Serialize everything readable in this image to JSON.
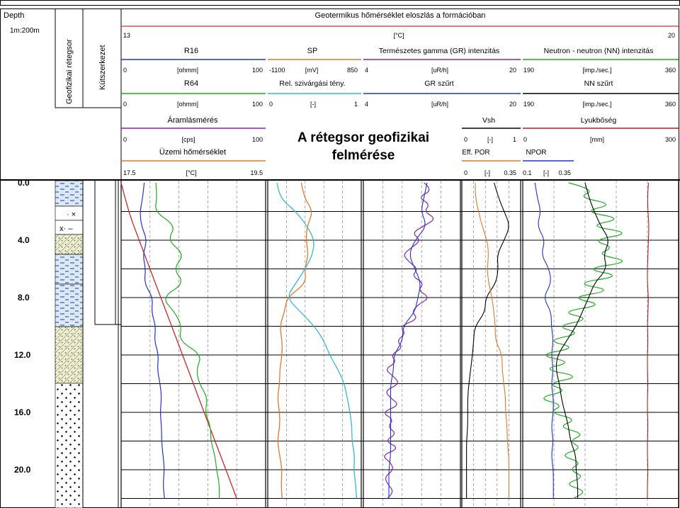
{
  "header": {
    "depth_label": "Depth",
    "scale_label": "1m:200m",
    "col1_label": "Geofizikai rétegsor",
    "col2_label": "Kútszerkezet",
    "main_title": "Geotermikus hőmérséklet eloszlás a formációban",
    "temp_scale": {
      "left": "13",
      "unit": "[°C]",
      "right": "20"
    }
  },
  "overlay_title": {
    "line1": "A rétegsor geofizikai",
    "line2": "felmérése"
  },
  "tracks": {
    "r16": {
      "name": "R16",
      "min": "0",
      "unit": "[ohmm]",
      "max": "100",
      "color": "#2233cc"
    },
    "sp": {
      "name": "SP",
      "min": "-1100",
      "unit": "[mV]",
      "max": "850",
      "color": "#e07a2a"
    },
    "gr": {
      "name": "Természetes gamma (GR) intenzitás",
      "min": "4",
      "unit": "[uR/h]",
      "max": "20",
      "color": "#8822aa"
    },
    "nn": {
      "name": "Neutron - neutron (NN) intenzitás",
      "min": "190",
      "unit": "[imp./sec.]",
      "max": "360",
      "color": "#22aa22"
    },
    "r64": {
      "name": "R64",
      "min": "0",
      "unit": "[ohmm]",
      "max": "100",
      "color": "#22aa22"
    },
    "relsz": {
      "name": "Rel. szivárgási tény.",
      "min": "0",
      "unit": "[-]",
      "max": "1",
      "color": "#33bbcc"
    },
    "grf": {
      "name": "GR szűrt",
      "min": "4",
      "unit": "[uR/h]",
      "max": "20",
      "color": "#2233cc"
    },
    "nnf": {
      "name": "NN szűrt",
      "min": "190",
      "unit": "[imp./sec.]",
      "max": "360",
      "color": "#000000"
    },
    "flow": {
      "name": "Áramlásmérés",
      "min": "0",
      "unit": "[cps]",
      "max": "100",
      "color": "#8822aa"
    },
    "vsh": {
      "name": "Vsh",
      "min": "0",
      "unit": "[-]",
      "max": "1",
      "color": "#000000"
    },
    "caliper": {
      "name": "Lyukbőség",
      "min": "0",
      "unit": "[mm]",
      "max": "300",
      "color": "#aa2222"
    },
    "optemp": {
      "name": "Üzemi hőmérséklet",
      "min": "17.5",
      "unit": "[°C]",
      "max": "19.5",
      "color": "#cc3333"
    },
    "effpor": {
      "name": "Eff. POR",
      "min": "0",
      "unit": "[-]",
      "max": "0.35",
      "color": "#e07a2a"
    },
    "npor": {
      "name": "NPOR",
      "min": "0.1",
      "unit": "[-]",
      "max": "0.35",
      "color": "#2233cc"
    }
  },
  "chart_data": {
    "type": "line",
    "depth_ticks": [
      "4.0",
      "8.0",
      "12.0",
      "16.0",
      "20.0"
    ],
    "partial_top_tick": "0.0",
    "series": [
      {
        "name": "Üzemi hőmérséklet",
        "y": [
          0,
          2,
          4,
          6,
          8,
          10,
          12,
          14,
          16,
          18,
          20,
          22
        ],
        "values": [
          17.5,
          17.6,
          17.75,
          17.9,
          18.05,
          18.2,
          18.35,
          18.5,
          18.65,
          18.8,
          18.95,
          19.1
        ]
      },
      {
        "name": "R16",
        "y": [
          0,
          1,
          2,
          3,
          4,
          5,
          6,
          7,
          8,
          9,
          10,
          11,
          12,
          13,
          14,
          15,
          16,
          17,
          18,
          19,
          20,
          21,
          22
        ],
        "values": [
          16,
          15,
          13,
          14,
          18,
          15,
          17,
          16,
          22,
          21,
          24,
          23,
          26,
          25,
          27,
          28,
          27,
          28,
          28,
          29,
          30,
          29,
          30
        ]
      },
      {
        "name": "R64",
        "y": [
          0,
          1,
          2,
          3,
          4,
          5,
          6,
          7,
          8,
          9,
          10,
          11,
          12,
          13,
          14,
          15,
          16,
          17,
          18,
          19,
          20,
          21,
          22
        ],
        "values": [
          24,
          25,
          23,
          38,
          32,
          44,
          36,
          44,
          28,
          37,
          42,
          40,
          56,
          52,
          54,
          60,
          58,
          62,
          62,
          65,
          66,
          68,
          68
        ]
      },
      {
        "name": "SP",
        "y": [
          0,
          1,
          2,
          3,
          4,
          5,
          6,
          7,
          8,
          9,
          10,
          11,
          12,
          13,
          14,
          15,
          16,
          17,
          18,
          19,
          20,
          21,
          22
        ],
        "values": [
          -400,
          -350,
          -150,
          -280,
          -300,
          -250,
          -330,
          -300,
          -700,
          -750,
          -850,
          -800,
          -800,
          -850,
          -850,
          -900,
          -850,
          -850,
          -900,
          -850,
          -800,
          -820,
          -800
        ]
      },
      {
        "name": "Rel. szivárgási tény.",
        "y": [
          0,
          1,
          2,
          3,
          4,
          5,
          6,
          7,
          8,
          9,
          10,
          11,
          12,
          13,
          14,
          15,
          16,
          17,
          18,
          19,
          20,
          21,
          22
        ],
        "values": [
          0.1,
          0.12,
          0.3,
          0.42,
          0.5,
          0.48,
          0.4,
          0.3,
          0.2,
          0.35,
          0.5,
          0.6,
          0.66,
          0.75,
          0.82,
          0.85,
          0.88,
          0.9,
          0.9,
          0.93,
          0.92,
          0.94,
          0.95
        ]
      },
      {
        "name": "Természetes gamma (GR) intenzitás",
        "y": [
          0,
          0.5,
          1,
          1.5,
          2,
          2.5,
          3,
          3.5,
          4,
          4.5,
          5,
          5.5,
          6,
          6.5,
          7,
          7.5,
          8,
          8.5,
          9,
          9.5,
          10,
          10.5,
          11,
          11.5,
          12,
          12.5,
          13,
          13.5,
          14,
          14.5,
          15,
          15.5,
          16,
          16.5,
          17,
          17.5,
          18,
          18.5,
          19,
          19.5,
          20,
          20.5,
          21,
          21.5,
          22
        ],
        "values": [
          14,
          15.5,
          13,
          15,
          14,
          16,
          14,
          12,
          13.5,
          12,
          10.5,
          11.5,
          13,
          12,
          14,
          13,
          15,
          13,
          12,
          13,
          10,
          11,
          9.5,
          10.5,
          8.5,
          9.5,
          7.5,
          9,
          10,
          7.5,
          8.5,
          10,
          7,
          9,
          8,
          9.5,
          7.5,
          10,
          7,
          8.5,
          9,
          7.5,
          8,
          9,
          8
        ]
      },
      {
        "name": "GR szűrt",
        "y": [
          0,
          1,
          2,
          3,
          4,
          5,
          6,
          7,
          8,
          9,
          10,
          11,
          12,
          13,
          14,
          15,
          16,
          17,
          18,
          19,
          20,
          21,
          22
        ],
        "values": [
          14.5,
          14,
          13.5,
          14.5,
          12.5,
          11.5,
          12.5,
          13.5,
          13,
          12.5,
          10.5,
          10.5,
          9,
          9,
          8.5,
          8.5,
          8.5,
          8.5,
          8.5,
          8.5,
          8.2,
          8.2,
          8.2
        ]
      },
      {
        "name": "Vsh",
        "y": [
          0,
          1,
          2,
          3,
          4,
          5,
          6,
          7,
          8,
          9,
          10,
          11,
          12,
          13,
          14,
          15,
          16,
          17,
          18,
          19,
          20,
          21,
          22
        ],
        "values": [
          0.55,
          0.62,
          0.72,
          0.82,
          0.72,
          0.6,
          0.62,
          0.58,
          0.4,
          0.4,
          0.22,
          0.2,
          0.18,
          0.15,
          0.12,
          0.1,
          0.1,
          0.1,
          0.08,
          0.08,
          0.08,
          0.08,
          0.08
        ]
      },
      {
        "name": "Eff. POR",
        "y": [
          0,
          1,
          2,
          3,
          4,
          5,
          6,
          7,
          8,
          9,
          10,
          11,
          12,
          13,
          14,
          15,
          16,
          17,
          18,
          19,
          20,
          21,
          22
        ],
        "values": [
          0.08,
          0.08,
          0.1,
          0.12,
          0.15,
          0.16,
          0.15,
          0.16,
          0.18,
          0.19,
          0.2,
          0.2,
          0.24,
          0.24,
          0.25,
          0.26,
          0.26,
          0.27,
          0.27,
          0.28,
          0.28,
          0.28,
          0.28
        ]
      },
      {
        "name": "NPOR",
        "y": [
          0,
          1,
          2,
          3,
          4,
          5,
          6,
          7,
          8,
          9,
          10,
          11,
          12,
          13,
          14,
          15,
          16,
          17,
          18,
          19,
          20,
          21,
          22
        ],
        "values": [
          0.16,
          0.17,
          0.19,
          0.17,
          0.21,
          0.19,
          0.23,
          0.24,
          0.2,
          0.24,
          0.24,
          0.25,
          0.24,
          0.25,
          0.24,
          0.25,
          0.25,
          0.24,
          0.25,
          0.24,
          0.25,
          0.25,
          0.25
        ]
      },
      {
        "name": "Neutron - neutron (NN) intenzitás",
        "y": [
          0,
          0.5,
          1,
          1.5,
          2,
          2.5,
          3,
          3.5,
          4,
          4.5,
          5,
          5.5,
          6,
          6.5,
          7,
          7.5,
          8,
          8.5,
          9,
          9.5,
          10,
          10.5,
          11,
          11.5,
          12,
          12.5,
          13,
          13.5,
          14,
          14.5,
          15,
          15.5,
          16,
          16.5,
          17,
          17.5,
          18,
          18.5,
          19,
          19.5,
          20,
          20.5,
          21,
          21.5,
          22
        ],
        "values": [
          240,
          270,
          250,
          290,
          255,
          300,
          260,
          310,
          265,
          290,
          270,
          310,
          255,
          300,
          245,
          290,
          240,
          280,
          230,
          265,
          225,
          255,
          215,
          250,
          205,
          245,
          210,
          255,
          215,
          240,
          205,
          235,
          218,
          250,
          228,
          258,
          240,
          255,
          230,
          255,
          240,
          258,
          235,
          260,
          245
        ]
      },
      {
        "name": "NN szűrt",
        "y": [
          0,
          1,
          2,
          3,
          4,
          5,
          6,
          7,
          8,
          9,
          10,
          11,
          12,
          13,
          14,
          15,
          16,
          17,
          18,
          19,
          20,
          21,
          22
        ],
        "values": [
          258,
          262,
          268,
          275,
          285,
          278,
          282,
          268,
          262,
          255,
          248,
          238,
          228,
          226,
          230,
          232,
          236,
          240,
          242,
          248,
          248,
          250,
          250
        ]
      },
      {
        "name": "Lyukbőség",
        "y": [
          0,
          1,
          2,
          3,
          4,
          5,
          6,
          7,
          8,
          9,
          10,
          11,
          12,
          13,
          14,
          15,
          16,
          17,
          18,
          19,
          20,
          21,
          22
        ],
        "values": [
          242,
          240,
          241,
          243,
          242,
          241,
          240,
          240,
          242,
          241,
          240,
          241,
          240,
          240,
          241,
          240,
          240,
          241,
          240,
          240,
          241,
          240,
          240
        ]
      }
    ]
  }
}
